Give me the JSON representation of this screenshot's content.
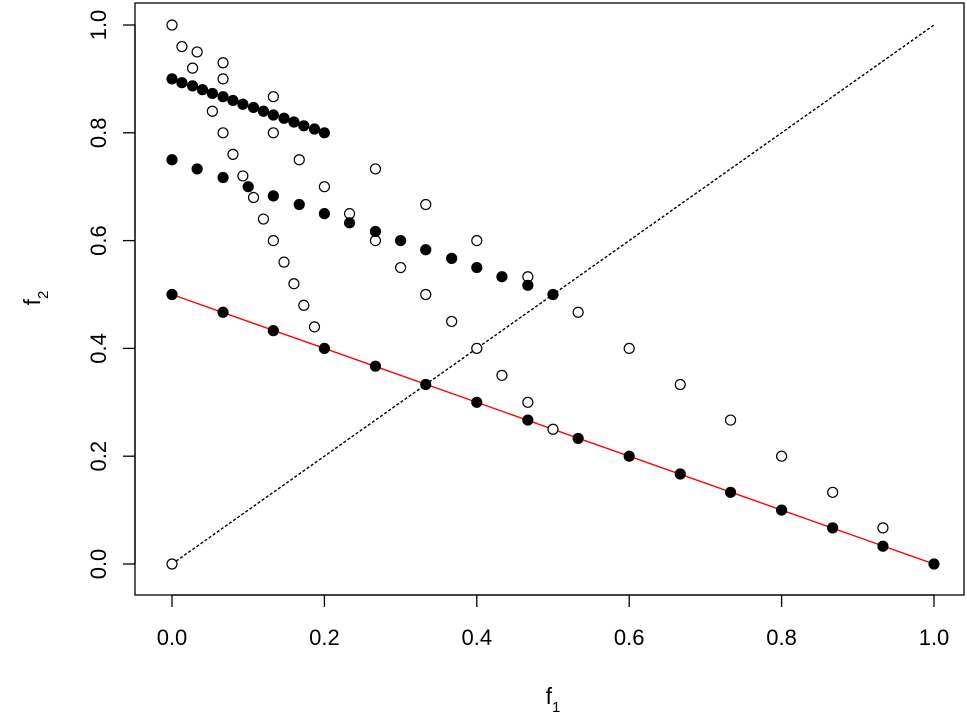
{
  "chart_data": {
    "type": "scatter",
    "xlabel": {
      "base": "f",
      "sub": "1"
    },
    "ylabel": {
      "base": "f",
      "sub": "2"
    },
    "xlim": [
      0,
      1
    ],
    "ylim": [
      0,
      1
    ],
    "x_ticks": [
      "0.0",
      "0.2",
      "0.4",
      "0.6",
      "0.8",
      "1.0"
    ],
    "y_ticks": [
      "0.0",
      "0.2",
      "0.4",
      "0.6",
      "0.8",
      "1.0"
    ],
    "colors": {
      "diagonal": "#000000",
      "front_line": "#ff0000",
      "points": "#000000"
    },
    "series": [
      {
        "marker": "open-circle",
        "points": [
          [
            0.0,
            0.0
          ],
          [
            0.0,
            1.0
          ],
          [
            0.013,
            0.96
          ],
          [
            0.027,
            0.92
          ],
          [
            0.033,
            0.95
          ],
          [
            0.053,
            0.84
          ],
          [
            0.067,
            0.93
          ],
          [
            0.067,
            0.9
          ],
          [
            0.067,
            0.8
          ],
          [
            0.08,
            0.76
          ],
          [
            0.093,
            0.72
          ],
          [
            0.107,
            0.68
          ],
          [
            0.12,
            0.64
          ],
          [
            0.133,
            0.867
          ],
          [
            0.133,
            0.8
          ],
          [
            0.133,
            0.6
          ],
          [
            0.147,
            0.56
          ],
          [
            0.16,
            0.52
          ],
          [
            0.167,
            0.75
          ],
          [
            0.173,
            0.48
          ],
          [
            0.187,
            0.44
          ],
          [
            0.2,
            0.7
          ],
          [
            0.233,
            0.65
          ],
          [
            0.267,
            0.733
          ],
          [
            0.267,
            0.6
          ],
          [
            0.3,
            0.55
          ],
          [
            0.333,
            0.667
          ],
          [
            0.333,
            0.5
          ],
          [
            0.367,
            0.45
          ],
          [
            0.4,
            0.6
          ],
          [
            0.4,
            0.4
          ],
          [
            0.433,
            0.35
          ],
          [
            0.467,
            0.533
          ],
          [
            0.467,
            0.3
          ],
          [
            0.5,
            0.25
          ],
          [
            0.533,
            0.467
          ],
          [
            0.6,
            0.4
          ],
          [
            0.667,
            0.333
          ],
          [
            0.733,
            0.267
          ],
          [
            0.8,
            0.2
          ],
          [
            0.867,
            0.133
          ],
          [
            0.933,
            0.067
          ]
        ]
      },
      {
        "marker": "filled-circle",
        "points": [
          [
            0.0,
            0.9
          ],
          [
            0.013,
            0.893
          ],
          [
            0.027,
            0.887
          ],
          [
            0.04,
            0.88
          ],
          [
            0.053,
            0.873
          ],
          [
            0.067,
            0.867
          ],
          [
            0.08,
            0.86
          ],
          [
            0.093,
            0.853
          ],
          [
            0.107,
            0.847
          ],
          [
            0.12,
            0.84
          ],
          [
            0.133,
            0.833
          ],
          [
            0.147,
            0.827
          ],
          [
            0.16,
            0.82
          ],
          [
            0.173,
            0.813
          ],
          [
            0.187,
            0.807
          ],
          [
            0.2,
            0.8
          ],
          [
            0.0,
            0.75
          ],
          [
            0.033,
            0.733
          ],
          [
            0.067,
            0.717
          ],
          [
            0.1,
            0.7
          ],
          [
            0.133,
            0.683
          ],
          [
            0.167,
            0.667
          ],
          [
            0.2,
            0.65
          ],
          [
            0.233,
            0.633
          ],
          [
            0.267,
            0.617
          ],
          [
            0.3,
            0.6
          ],
          [
            0.333,
            0.583
          ],
          [
            0.367,
            0.567
          ],
          [
            0.4,
            0.55
          ],
          [
            0.433,
            0.533
          ],
          [
            0.467,
            0.517
          ],
          [
            0.5,
            0.5
          ],
          [
            0.0,
            0.5
          ],
          [
            0.067,
            0.467
          ],
          [
            0.133,
            0.433
          ],
          [
            0.2,
            0.4
          ],
          [
            0.267,
            0.367
          ],
          [
            0.333,
            0.333
          ],
          [
            0.4,
            0.3
          ],
          [
            0.467,
            0.267
          ],
          [
            0.533,
            0.233
          ],
          [
            0.6,
            0.2
          ],
          [
            0.667,
            0.167
          ],
          [
            0.733,
            0.133
          ],
          [
            0.8,
            0.1
          ],
          [
            0.867,
            0.067
          ],
          [
            0.933,
            0.033
          ],
          [
            1.0,
            0.0
          ]
        ]
      }
    ],
    "lines": [
      {
        "kind": "diagonal",
        "style": "dashed",
        "color": "#000000",
        "points": [
          [
            0,
            0
          ],
          [
            1,
            1
          ]
        ]
      },
      {
        "kind": "front",
        "style": "solid",
        "color": "#ff0000",
        "points": [
          [
            0,
            0.5
          ],
          [
            1,
            0
          ]
        ]
      }
    ]
  }
}
